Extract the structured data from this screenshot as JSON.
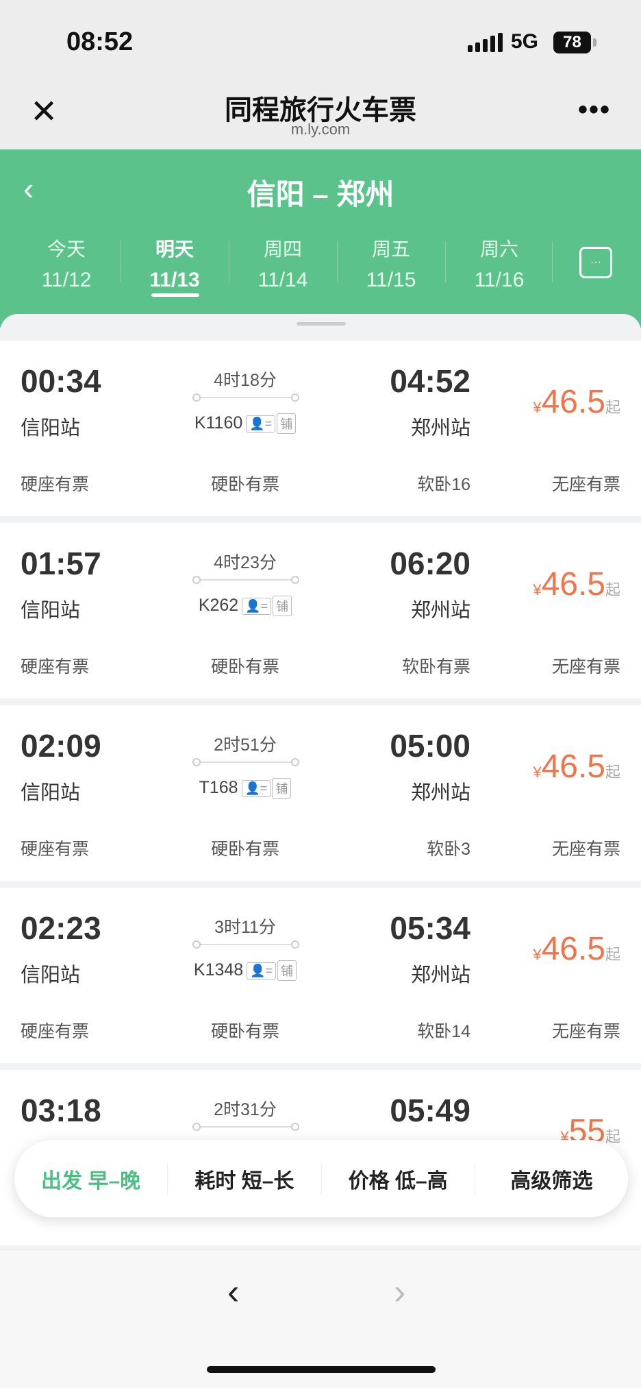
{
  "status": {
    "time": "08:52",
    "network": "5G",
    "battery": "78"
  },
  "header": {
    "title": "同程旅行火车票",
    "url": "m.ly.com",
    "close_icon": "close-icon",
    "more_icon": "more-icon"
  },
  "route": {
    "title": "信阳 – 郑州"
  },
  "dates": [
    {
      "day": "今天",
      "date": "11/12"
    },
    {
      "day": "明天",
      "date": "11/13",
      "selected": true
    },
    {
      "day": "周四",
      "date": "11/14"
    },
    {
      "day": "周五",
      "date": "11/15"
    },
    {
      "day": "周六",
      "date": "11/16"
    }
  ],
  "trains": [
    {
      "dep": "00:34",
      "from": "信阳站",
      "duration": "4时18分",
      "train": "K1160",
      "tag": "铺",
      "arr": "04:52",
      "to": "郑州站",
      "price": "46.5",
      "seats": [
        "硬座有票",
        "硬卧有票",
        "软卧16",
        "无座有票"
      ]
    },
    {
      "dep": "01:57",
      "from": "信阳站",
      "duration": "4时23分",
      "train": "K262",
      "tag": "铺",
      "arr": "06:20",
      "to": "郑州站",
      "price": "46.5",
      "seats": [
        "硬座有票",
        "硬卧有票",
        "软卧有票",
        "无座有票"
      ]
    },
    {
      "dep": "02:09",
      "from": "信阳站",
      "duration": "2时51分",
      "train": "T168",
      "tag": "铺",
      "arr": "05:00",
      "to": "郑州站",
      "price": "46.5",
      "seats": [
        "硬座有票",
        "硬卧有票",
        "软卧3",
        "无座有票"
      ]
    },
    {
      "dep": "02:23",
      "from": "信阳站",
      "duration": "3时11分",
      "train": "K1348",
      "tag": "铺",
      "arr": "05:34",
      "to": "郑州站",
      "price": "46.5",
      "seats": [
        "硬座有票",
        "硬卧有票",
        "软卧14",
        "无座有票"
      ]
    },
    {
      "dep": "03:18",
      "duration": "2时31分",
      "arr": "05:49",
      "price": "55"
    }
  ],
  "currency": "¥",
  "price_suffix": "起",
  "filters": [
    "出发 早–晚",
    "耗时 短–长",
    "价格 低–高",
    "高级筛选"
  ],
  "colors": {
    "brand_green": "#5bc28b",
    "price": "#f0744a",
    "active_filter": "#4bbf82"
  }
}
